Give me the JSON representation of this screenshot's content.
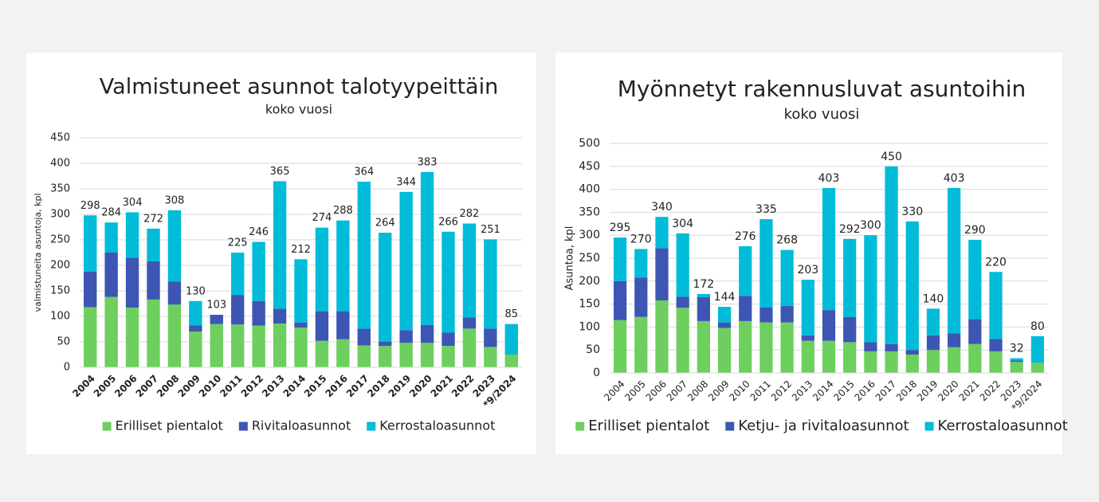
{
  "chart_data": [
    {
      "type": "stacked_bar",
      "title": "Valmistuneet asunnot talotyypeittäin",
      "subtitle": "koko vuosi",
      "y_label": "valmistuneita asuntoja, kpl",
      "categories": [
        "2004",
        "2005",
        "2006",
        "2007",
        "2008",
        "2009",
        "2010",
        "2011",
        "2012",
        "2013",
        "2014",
        "2015",
        "2016",
        "2017",
        "2018",
        "2019",
        "2020",
        "2021",
        "2022",
        "2023",
        "*9/2024"
      ],
      "series": [
        {
          "name": "Erilliset pientalot",
          "color": "#6dcf5e",
          "values": [
            118,
            138,
            117,
            133,
            123,
            70,
            85,
            84,
            82,
            86,
            78,
            52,
            55,
            43,
            42,
            48,
            48,
            42,
            76,
            40,
            25
          ]
        },
        {
          "name": "Rivitaloasunnot",
          "color": "#3d56b3",
          "values": [
            70,
            87,
            98,
            75,
            45,
            12,
            18,
            58,
            48,
            29,
            10,
            58,
            55,
            33,
            8,
            25,
            35,
            26,
            22,
            36,
            0
          ]
        },
        {
          "name": "Kerrostaloasunnot",
          "color": "#00bcd8",
          "values": [
            110,
            59,
            89,
            64,
            140,
            48,
            0,
            83,
            116,
            250,
            124,
            164,
            178,
            288,
            214,
            271,
            300,
            198,
            184,
            175,
            60
          ]
        }
      ],
      "totals": [
        298,
        284,
        304,
        272,
        308,
        130,
        103,
        225,
        246,
        365,
        212,
        274,
        288,
        364,
        264,
        344,
        383,
        266,
        282,
        251,
        85
      ],
      "ylim": [
        0,
        450
      ],
      "yticks": [
        0,
        50,
        100,
        150,
        200,
        250,
        300,
        350,
        400,
        450
      ],
      "grid": true,
      "legend": "bottom"
    },
    {
      "type": "stacked_bar",
      "title": "Myönnetyt rakennusluvat asuntoihin",
      "subtitle": "koko vuosi",
      "y_label": "Asuntoa, kpl",
      "categories": [
        "2004",
        "2005",
        "2006",
        "2007",
        "2008",
        "2009",
        "2010",
        "2011",
        "2012",
        "2013",
        "2014",
        "2015",
        "2016",
        "2017",
        "2018",
        "2019",
        "2020",
        "2021",
        "2022",
        "2023",
        "*9/2024"
      ],
      "series": [
        {
          "name": "Erilliset pientalot",
          "color": "#6dcf5e",
          "values": [
            115,
            122,
            158,
            142,
            113,
            98,
            113,
            110,
            110,
            70,
            70,
            67,
            47,
            47,
            40,
            50,
            56,
            63,
            47,
            24,
            22
          ]
        },
        {
          "name": "Ketju- ja rivitaloasunnot",
          "color": "#3d56b3",
          "values": [
            85,
            86,
            114,
            24,
            52,
            12,
            55,
            33,
            36,
            12,
            67,
            55,
            20,
            16,
            10,
            32,
            30,
            54,
            27,
            3,
            0
          ]
        },
        {
          "name": "Kerrostaloasunnot",
          "color": "#00bcd8",
          "values": [
            95,
            62,
            68,
            138,
            7,
            34,
            108,
            192,
            122,
            121,
            266,
            170,
            233,
            387,
            280,
            58,
            317,
            173,
            146,
            5,
            58
          ]
        }
      ],
      "totals": [
        295,
        270,
        340,
        304,
        172,
        144,
        276,
        335,
        268,
        203,
        403,
        292,
        300,
        450,
        330,
        140,
        403,
        290,
        220,
        32,
        80
      ],
      "ylim": [
        0,
        500
      ],
      "yticks": [
        0,
        50,
        100,
        150,
        200,
        250,
        300,
        350,
        400,
        450,
        500
      ],
      "grid": true,
      "legend": "bottom"
    }
  ]
}
